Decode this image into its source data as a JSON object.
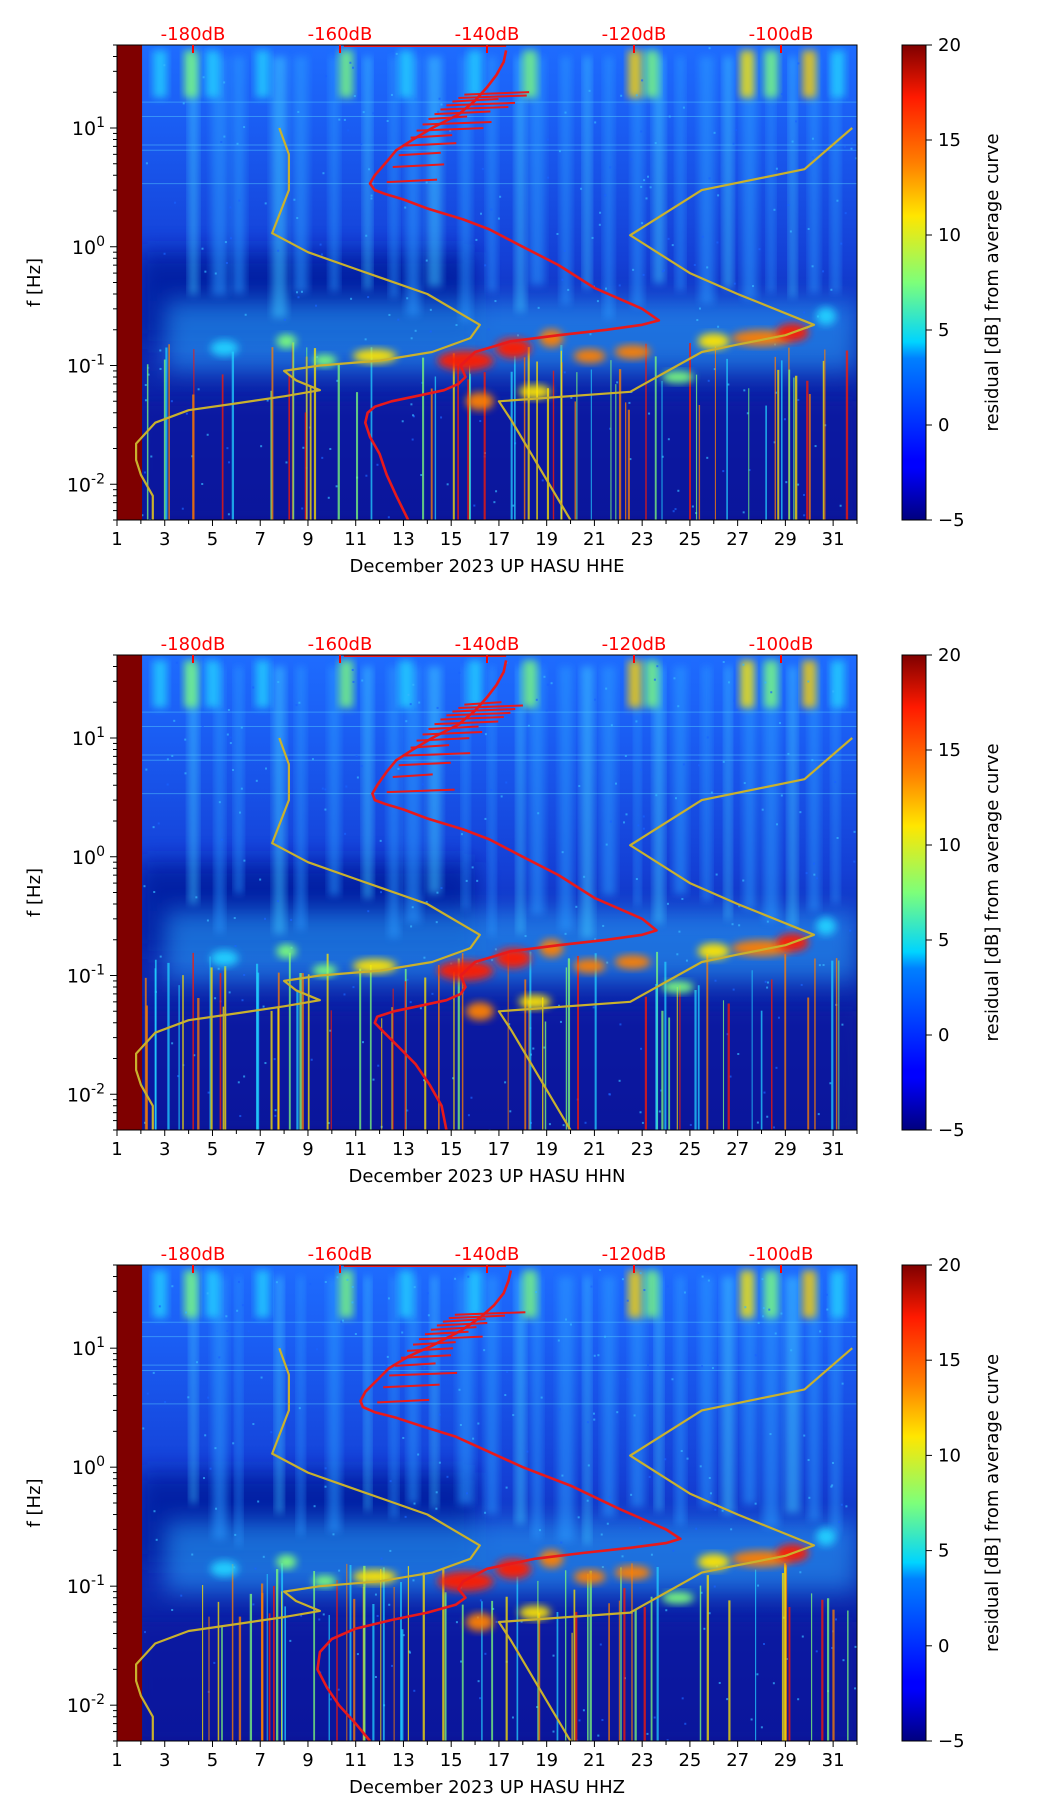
{
  "chart_data": [
    {
      "type": "heatmap",
      "xlabel": "December 2023 UP HASU  HHE",
      "ylabel": "f [Hz]",
      "x_ticks": [
        "1",
        "3",
        "5",
        "7",
        "9",
        "11",
        "13",
        "15",
        "17",
        "19",
        "21",
        "23",
        "25",
        "27",
        "29",
        "31"
      ],
      "y_ticks": [
        "10^{-2}",
        "10^{-1}",
        "10^{0}",
        "10^{1}"
      ],
      "y_scale": "log",
      "ylim": [
        0.005,
        50
      ],
      "xlim": [
        1,
        32
      ],
      "db_ticks": [
        "-180dB",
        "-160dB",
        "-140dB",
        "-120dB",
        "-100dB"
      ],
      "colorbar": {
        "label": "residual [dB] from average curve",
        "ticks": [
          "20",
          "15",
          "10",
          "5",
          "0",
          "−5"
        ],
        "range": [
          -5,
          20
        ],
        "colormap": "jet"
      },
      "series": [
        {
          "color": "#e8191b",
          "x": [
            13.2,
            12.7,
            12.3,
            12.0,
            11.6,
            11.4,
            11.5,
            11.8,
            12.5,
            13.5,
            14.7,
            15.3,
            15.6,
            15.4,
            16.0,
            17.5,
            19.5,
            21.5,
            23.0,
            23.7,
            23.0,
            21.0,
            19.5,
            18.0,
            16.6,
            15.5,
            14.0,
            13.0,
            12.2,
            11.8,
            11.6,
            11.8,
            12.3,
            12.7,
            13.4,
            14.2,
            15.3,
            16.0,
            16.5,
            16.9,
            17.2,
            17.3
          ],
          "y": [
            0.005,
            0.008,
            0.012,
            0.018,
            0.025,
            0.033,
            0.04,
            0.045,
            0.05,
            0.055,
            0.062,
            0.07,
            0.08,
            0.1,
            0.13,
            0.16,
            0.18,
            0.2,
            0.22,
            0.24,
            0.3,
            0.45,
            0.7,
            1.0,
            1.4,
            1.7,
            2.1,
            2.5,
            2.8,
            3.0,
            3.4,
            4.0,
            5.2,
            6.5,
            8.0,
            10.0,
            13.0,
            17.0,
            22.0,
            28.0,
            36.0,
            45.0
          ]
        },
        {
          "color": "#c9b12d",
          "x": [
            2.5,
            2.5,
            2.0,
            1.8,
            1.8,
            2.6,
            4.0,
            6.0,
            8.0,
            9.5,
            8.5,
            8.0,
            9.5,
            12.0,
            14.2,
            15.8,
            16.2,
            14.0,
            11.0,
            9.0,
            7.5,
            8.2,
            8.2,
            7.8
          ],
          "y": [
            0.005,
            0.008,
            0.012,
            0.016,
            0.022,
            0.033,
            0.042,
            0.048,
            0.055,
            0.062,
            0.075,
            0.09,
            0.1,
            0.11,
            0.13,
            0.17,
            0.22,
            0.4,
            0.65,
            0.9,
            1.3,
            3.0,
            6.0,
            10.0
          ]
        },
        {
          "color": "#c9b12d",
          "x": [
            20.0,
            17.5,
            17.0,
            22.5,
            25.5,
            27.0,
            29.0,
            30.2,
            27.0,
            25.0,
            22.5,
            25.5,
            29.8,
            31.8
          ],
          "y": [
            0.005,
            0.035,
            0.05,
            0.06,
            0.13,
            0.15,
            0.18,
            0.22,
            0.4,
            0.6,
            1.25,
            3.0,
            4.5,
            10.0
          ]
        }
      ]
    },
    {
      "type": "heatmap",
      "xlabel": "December 2023 UP HASU  HHN",
      "ylabel": "f [Hz]",
      "x_ticks": [
        "1",
        "3",
        "5",
        "7",
        "9",
        "11",
        "13",
        "15",
        "17",
        "19",
        "21",
        "23",
        "25",
        "27",
        "29",
        "31"
      ],
      "y_ticks": [
        "10^{-2}",
        "10^{-1}",
        "10^{0}",
        "10^{1}"
      ],
      "y_scale": "log",
      "ylim": [
        0.005,
        50
      ],
      "xlim": [
        1,
        32
      ],
      "db_ticks": [
        "-180dB",
        "-160dB",
        "-140dB",
        "-120dB",
        "-100dB"
      ],
      "colorbar": {
        "label": "residual [dB] from average curve",
        "ticks": [
          "20",
          "15",
          "10",
          "5",
          "0",
          "−5"
        ],
        "range": [
          -5,
          20
        ],
        "colormap": "jet"
      },
      "series": [
        {
          "color": "#e8191b",
          "x": [
            14.8,
            14.6,
            14.1,
            13.5,
            12.8,
            12.2,
            11.8,
            11.9,
            12.6,
            13.6,
            14.8,
            15.4,
            15.6,
            15.4,
            16.0,
            17.5,
            19.5,
            21.5,
            23.0,
            23.6,
            23.0,
            21.0,
            19.5,
            18.0,
            16.6,
            15.5,
            14.0,
            13.0,
            12.2,
            11.8,
            11.7,
            11.9,
            12.3,
            12.7,
            13.4,
            14.2,
            15.3,
            16.0,
            16.5,
            16.9,
            17.2,
            17.3
          ],
          "y": [
            0.005,
            0.008,
            0.012,
            0.018,
            0.025,
            0.033,
            0.04,
            0.045,
            0.05,
            0.055,
            0.062,
            0.07,
            0.08,
            0.1,
            0.13,
            0.16,
            0.18,
            0.2,
            0.22,
            0.24,
            0.3,
            0.45,
            0.7,
            1.0,
            1.4,
            1.7,
            2.1,
            2.5,
            2.8,
            3.0,
            3.4,
            4.0,
            5.2,
            6.5,
            8.0,
            10.0,
            13.0,
            17.0,
            22.0,
            28.0,
            36.0,
            45.0
          ]
        },
        {
          "color": "#c9b12d",
          "x": [
            2.5,
            2.5,
            2.0,
            1.8,
            1.8,
            2.6,
            4.0,
            6.0,
            8.0,
            9.5,
            8.5,
            8.0,
            9.5,
            12.0,
            14.2,
            15.8,
            16.2,
            14.0,
            11.0,
            9.0,
            7.5,
            8.2,
            8.2,
            7.8
          ],
          "y": [
            0.005,
            0.008,
            0.012,
            0.016,
            0.022,
            0.033,
            0.042,
            0.048,
            0.055,
            0.062,
            0.075,
            0.09,
            0.1,
            0.11,
            0.13,
            0.17,
            0.22,
            0.4,
            0.65,
            0.9,
            1.3,
            3.0,
            6.0,
            10.0
          ]
        },
        {
          "color": "#c9b12d",
          "x": [
            20.0,
            17.5,
            17.0,
            22.5,
            25.5,
            27.0,
            29.0,
            30.2,
            27.0,
            25.0,
            22.5,
            25.5,
            29.8,
            31.8
          ],
          "y": [
            0.005,
            0.035,
            0.05,
            0.06,
            0.13,
            0.15,
            0.18,
            0.22,
            0.4,
            0.6,
            1.25,
            3.0,
            4.5,
            10.0
          ]
        }
      ]
    },
    {
      "type": "heatmap",
      "xlabel": "December 2023 UP HASU  HHZ",
      "ylabel": "f [Hz]",
      "x_ticks": [
        "1",
        "3",
        "5",
        "7",
        "9",
        "11",
        "13",
        "15",
        "17",
        "19",
        "21",
        "23",
        "25",
        "27",
        "29",
        "31"
      ],
      "y_ticks": [
        "10^{-2}",
        "10^{-1}",
        "10^{0}",
        "10^{1}"
      ],
      "y_scale": "log",
      "ylim": [
        0.005,
        50
      ],
      "xlim": [
        1,
        32
      ],
      "db_ticks": [
        "-180dB",
        "-160dB",
        "-140dB",
        "-120dB",
        "-100dB"
      ],
      "colorbar": {
        "label": "residual [dB] from average curve",
        "ticks": [
          "20",
          "15",
          "10",
          "5",
          "0",
          "−5"
        ],
        "range": [
          -5,
          20
        ],
        "colormap": "jet"
      },
      "series": [
        {
          "color": "#e8191b",
          "x": [
            11.6,
            11.0,
            10.3,
            9.8,
            9.4,
            9.5,
            10.0,
            11.0,
            12.5,
            14.0,
            15.2,
            15.6,
            15.3,
            15.5,
            16.5,
            18.5,
            20.5,
            22.5,
            24.0,
            24.6,
            24.0,
            22.0,
            20.0,
            18.0,
            16.4,
            15.2,
            13.8,
            12.7,
            11.8,
            11.3,
            11.2,
            11.4,
            11.9,
            12.4,
            13.2,
            14.2,
            15.4,
            16.2,
            16.8,
            17.2,
            17.4,
            17.5
          ],
          "y": [
            0.005,
            0.007,
            0.01,
            0.014,
            0.02,
            0.028,
            0.036,
            0.044,
            0.052,
            0.06,
            0.07,
            0.08,
            0.095,
            0.11,
            0.14,
            0.17,
            0.19,
            0.21,
            0.23,
            0.25,
            0.3,
            0.45,
            0.7,
            1.0,
            1.4,
            1.8,
            2.2,
            2.6,
            2.9,
            3.2,
            3.6,
            4.3,
            5.4,
            6.8,
            8.5,
            10.5,
            14.0,
            18.0,
            23.0,
            29.0,
            37.0,
            45.0
          ]
        },
        {
          "color": "#c9b12d",
          "x": [
            2.5,
            2.5,
            2.0,
            1.8,
            1.8,
            2.6,
            4.0,
            6.0,
            8.0,
            9.5,
            8.5,
            8.0,
            9.5,
            12.0,
            14.2,
            15.8,
            16.2,
            14.0,
            11.0,
            9.0,
            7.5,
            8.2,
            8.2,
            7.8
          ],
          "y": [
            0.005,
            0.008,
            0.012,
            0.016,
            0.022,
            0.033,
            0.042,
            0.048,
            0.055,
            0.062,
            0.075,
            0.09,
            0.1,
            0.11,
            0.13,
            0.17,
            0.22,
            0.4,
            0.65,
            0.9,
            1.3,
            3.0,
            6.0,
            10.0
          ]
        },
        {
          "color": "#c9b12d",
          "x": [
            20.0,
            17.5,
            17.0,
            22.5,
            25.5,
            27.0,
            29.0,
            30.2,
            27.0,
            25.0,
            22.5,
            25.5,
            29.8,
            31.8
          ],
          "y": [
            0.005,
            0.035,
            0.05,
            0.06,
            0.13,
            0.15,
            0.18,
            0.22,
            0.4,
            0.6,
            1.25,
            3.0,
            4.5,
            10.0
          ]
        }
      ]
    }
  ]
}
